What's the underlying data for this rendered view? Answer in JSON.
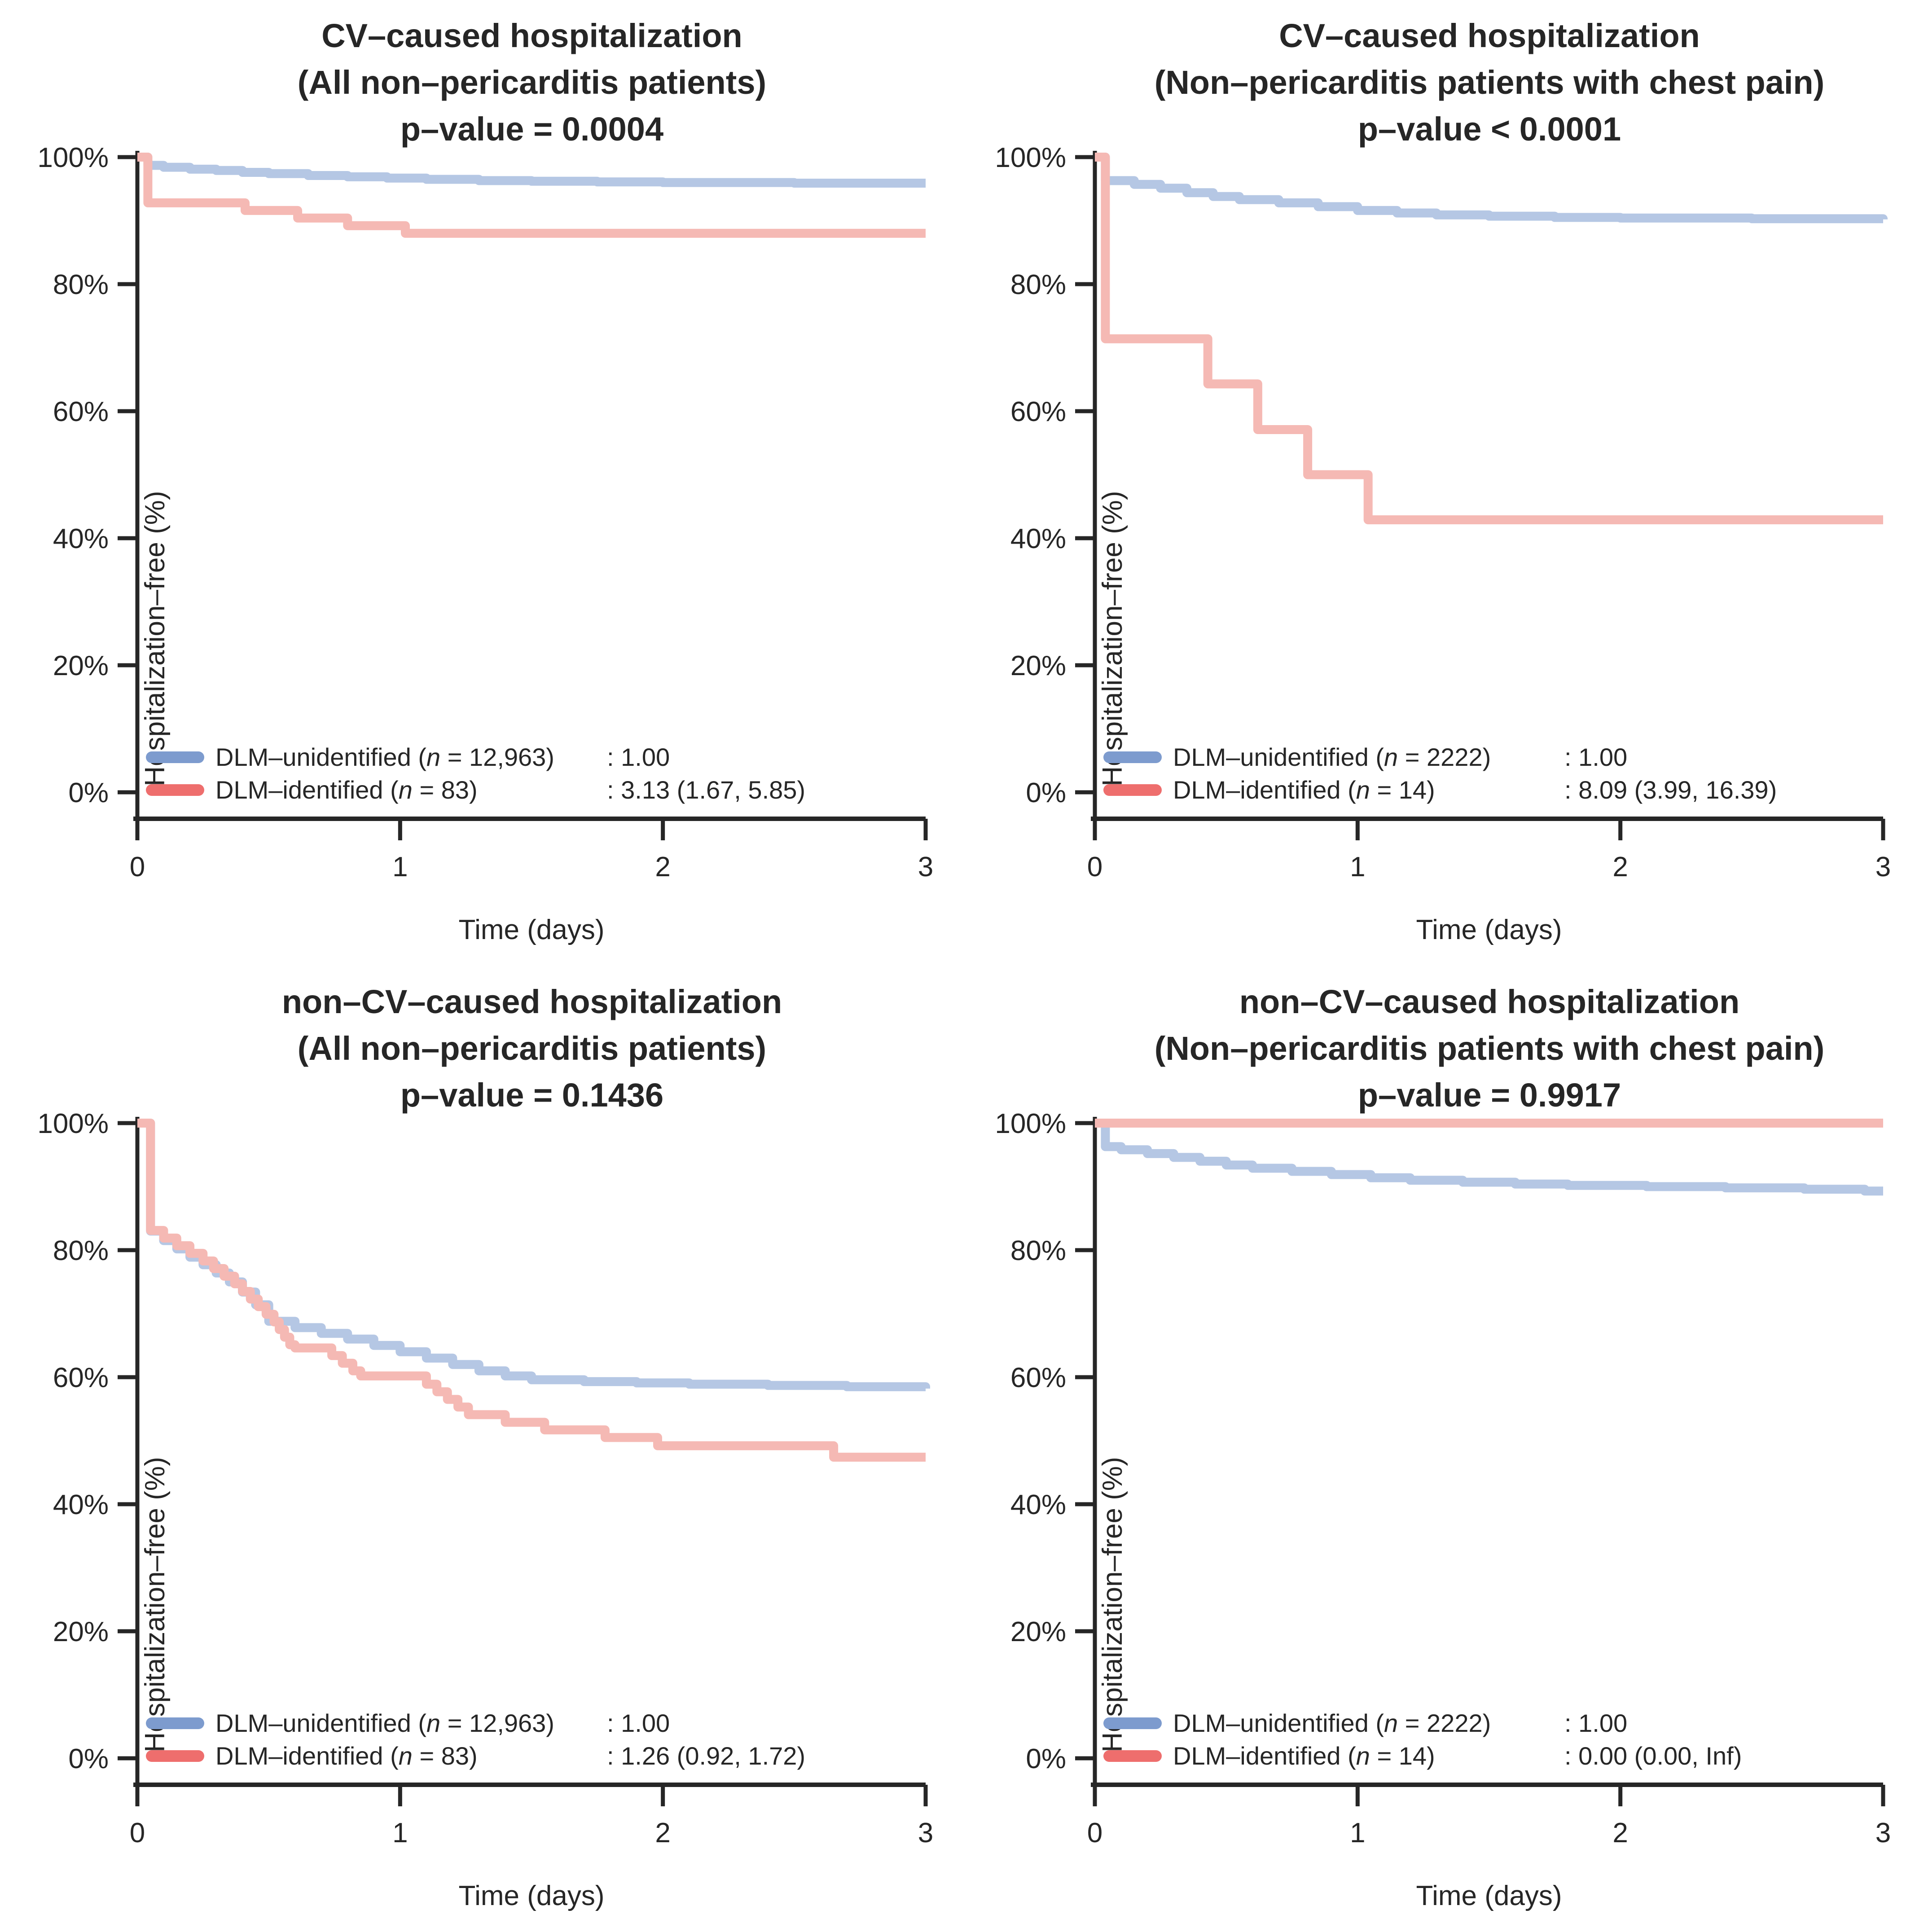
{
  "figure": {
    "background": "#ffffff",
    "colors": {
      "legend_blue": "#7d9bce",
      "legend_red": "#ee6e6d",
      "curve_blue": "#b5c7e4",
      "curve_red": "#f5b9b4",
      "text": "#262626",
      "axis": "#262626"
    }
  },
  "axes": {
    "y_label": "Hospitalization–free (%)",
    "x_label": "Time (days)",
    "y_tick_labels": [
      "0%",
      "20%",
      "40%",
      "60%",
      "80%",
      "100%"
    ],
    "y_tick_values": [
      0,
      20,
      40,
      60,
      80,
      100
    ],
    "x_tick_labels": [
      "0",
      "1",
      "2",
      "3"
    ],
    "x_tick_values": [
      0,
      1,
      2,
      3
    ]
  },
  "chart_data": [
    {
      "type": "line",
      "subtype": "kaplan-meier-step",
      "title_lines": [
        "CV–caused hospitalization",
        "(All non–pericarditis patients)",
        "p–value = 0.0004"
      ],
      "p_value": "p–value = 0.0004",
      "xlabel": "Time (days)",
      "ylabel": "Hospitalization–free (%)",
      "xlim": [
        0,
        3
      ],
      "ylim": [
        0,
        100
      ],
      "series": [
        {
          "name": "DLM-unidentified",
          "label_prefix": "DLM–unidentified (",
          "label_n": "n",
          "label_rest": " = 12,963)",
          "hr_text": ": 1.00",
          "color_key": "blue",
          "points": [
            [
              0,
              100
            ],
            [
              0.04,
              98.7
            ],
            [
              0.1,
              98.4
            ],
            [
              0.2,
              98.1
            ],
            [
              0.3,
              97.9
            ],
            [
              0.4,
              97.6
            ],
            [
              0.5,
              97.4
            ],
            [
              0.65,
              97.1
            ],
            [
              0.8,
              96.9
            ],
            [
              0.95,
              96.7
            ],
            [
              1.1,
              96.5
            ],
            [
              1.3,
              96.3
            ],
            [
              1.5,
              96.2
            ],
            [
              1.75,
              96.1
            ],
            [
              2.0,
              96.0
            ],
            [
              2.5,
              95.9
            ],
            [
              3,
              95.9
            ]
          ]
        },
        {
          "name": "DLM-identified",
          "label_prefix": "DLM–identified (",
          "label_n": "n",
          "label_rest": " = 83)",
          "hr_text": ": 3.13 (1.67, 5.85)",
          "color_key": "red",
          "points": [
            [
              0,
              100
            ],
            [
              0.04,
              92.8
            ],
            [
              0.41,
              91.6
            ],
            [
              0.61,
              90.4
            ],
            [
              0.8,
              89.2
            ],
            [
              1.02,
              88.0
            ],
            [
              3,
              88.0
            ]
          ]
        }
      ]
    },
    {
      "type": "line",
      "subtype": "kaplan-meier-step",
      "title_lines": [
        "CV–caused hospitalization",
        "(Non–pericarditis patients with chest pain)",
        "p–value < 0.0001"
      ],
      "p_value": "p–value < 0.0001",
      "xlabel": "Time (days)",
      "ylabel": "Hospitalization–free (%)",
      "xlim": [
        0,
        3
      ],
      "ylim": [
        0,
        100
      ],
      "series": [
        {
          "name": "DLM-unidentified",
          "label_prefix": "DLM–unidentified (",
          "label_n": "n",
          "label_rest": " = 2222)",
          "hr_text": ": 1.00",
          "color_key": "blue",
          "points": [
            [
              0,
              100
            ],
            [
              0.04,
              96.3
            ],
            [
              0.15,
              95.7
            ],
            [
              0.25,
              95.1
            ],
            [
              0.35,
              94.4
            ],
            [
              0.45,
              93.8
            ],
            [
              0.55,
              93.3
            ],
            [
              0.7,
              92.8
            ],
            [
              0.85,
              92.2
            ],
            [
              1.0,
              91.6
            ],
            [
              1.15,
              91.2
            ],
            [
              1.3,
              90.9
            ],
            [
              1.5,
              90.7
            ],
            [
              1.75,
              90.5
            ],
            [
              2.0,
              90.4
            ],
            [
              2.5,
              90.3
            ],
            [
              3,
              90.2
            ]
          ]
        },
        {
          "name": "DLM-identified",
          "label_prefix": "DLM–identified (",
          "label_n": "n",
          "label_rest": " = 14)",
          "hr_text": ": 8.09 (3.99, 16.39)",
          "color_key": "red",
          "points": [
            [
              0,
              100
            ],
            [
              0.04,
              71.4
            ],
            [
              0.43,
              64.3
            ],
            [
              0.62,
              57.1
            ],
            [
              0.81,
              50.0
            ],
            [
              1.04,
              42.9
            ],
            [
              3,
              42.9
            ]
          ]
        }
      ]
    },
    {
      "type": "line",
      "subtype": "kaplan-meier-step",
      "title_lines": [
        "non–CV–caused hospitalization",
        "(All non–pericarditis patients)",
        "p–value = 0.1436"
      ],
      "p_value": "p–value = 0.1436",
      "xlabel": "Time (days)",
      "ylabel": "Hospitalization–free (%)",
      "xlim": [
        0,
        3
      ],
      "ylim": [
        0,
        100
      ],
      "series": [
        {
          "name": "DLM-unidentified",
          "label_prefix": "DLM–unidentified (",
          "label_n": "n",
          "label_rest": " = 12,963)",
          "hr_text": ": 1.00",
          "color_key": "blue",
          "points": [
            [
              0,
              100
            ],
            [
              0.05,
              83.0
            ],
            [
              0.1,
              81.5
            ],
            [
              0.15,
              80.2
            ],
            [
              0.2,
              78.9
            ],
            [
              0.25,
              77.7
            ],
            [
              0.3,
              76.4
            ],
            [
              0.35,
              75.0
            ],
            [
              0.4,
              73.4
            ],
            [
              0.45,
              71.4
            ],
            [
              0.5,
              68.8
            ],
            [
              0.6,
              67.8
            ],
            [
              0.7,
              66.9
            ],
            [
              0.8,
              66.0
            ],
            [
              0.9,
              65.0
            ],
            [
              1.0,
              64.0
            ],
            [
              1.1,
              63.0
            ],
            [
              1.2,
              62.0
            ],
            [
              1.3,
              61.0
            ],
            [
              1.4,
              60.2
            ],
            [
              1.5,
              59.6
            ],
            [
              1.7,
              59.3
            ],
            [
              1.9,
              59.1
            ],
            [
              2.1,
              58.9
            ],
            [
              2.4,
              58.7
            ],
            [
              2.7,
              58.5
            ],
            [
              3,
              58.2
            ]
          ]
        },
        {
          "name": "DLM-identified",
          "label_prefix": "DLM–identified (",
          "label_n": "n",
          "label_rest": " = 83)",
          "hr_text": ": 1.26 (0.92, 1.72)",
          "color_key": "red",
          "points": [
            [
              0,
              100
            ],
            [
              0.05,
              83.1
            ],
            [
              0.1,
              81.9
            ],
            [
              0.15,
              80.7
            ],
            [
              0.2,
              79.5
            ],
            [
              0.25,
              78.3
            ],
            [
              0.29,
              77.1
            ],
            [
              0.33,
              75.9
            ],
            [
              0.37,
              74.7
            ],
            [
              0.4,
              73.5
            ],
            [
              0.43,
              72.3
            ],
            [
              0.46,
              71.1
            ],
            [
              0.49,
              69.9
            ],
            [
              0.52,
              68.7
            ],
            [
              0.54,
              67.5
            ],
            [
              0.56,
              66.3
            ],
            [
              0.58,
              65.1
            ],
            [
              0.6,
              64.6
            ],
            [
              0.74,
              63.4
            ],
            [
              0.78,
              62.2
            ],
            [
              0.82,
              61.0
            ],
            [
              0.85,
              60.2
            ],
            [
              1.1,
              58.9
            ],
            [
              1.14,
              57.7
            ],
            [
              1.18,
              56.5
            ],
            [
              1.22,
              55.3
            ],
            [
              1.26,
              54.1
            ],
            [
              1.4,
              52.9
            ],
            [
              1.55,
              51.7
            ],
            [
              1.78,
              50.5
            ],
            [
              1.98,
              49.2
            ],
            [
              2.65,
              47.4
            ],
            [
              3,
              47.4
            ]
          ]
        }
      ]
    },
    {
      "type": "line",
      "subtype": "kaplan-meier-step",
      "title_lines": [
        "non–CV–caused hospitalization",
        "(Non–pericarditis patients with chest pain)",
        "p–value = 0.9917"
      ],
      "p_value": "p–value = 0.9917",
      "xlabel": "Time (days)",
      "ylabel": "Hospitalization–free (%)",
      "xlim": [
        0,
        3
      ],
      "ylim": [
        0,
        100
      ],
      "series": [
        {
          "name": "DLM-unidentified",
          "label_prefix": "DLM–unidentified (",
          "label_n": "n",
          "label_rest": " = 2222)",
          "hr_text": ": 1.00",
          "color_key": "blue",
          "points": [
            [
              0,
              100
            ],
            [
              0.04,
              96.3
            ],
            [
              0.1,
              95.8
            ],
            [
              0.2,
              95.2
            ],
            [
              0.3,
              94.6
            ],
            [
              0.4,
              94.0
            ],
            [
              0.5,
              93.4
            ],
            [
              0.6,
              92.9
            ],
            [
              0.75,
              92.4
            ],
            [
              0.9,
              91.9
            ],
            [
              1.05,
              91.4
            ],
            [
              1.2,
              91.0
            ],
            [
              1.4,
              90.7
            ],
            [
              1.6,
              90.4
            ],
            [
              1.8,
              90.2
            ],
            [
              2.1,
              90.0
            ],
            [
              2.4,
              89.8
            ],
            [
              2.7,
              89.6
            ],
            [
              2.93,
              89.3
            ],
            [
              3,
              89.3
            ]
          ]
        },
        {
          "name": "DLM-identified",
          "label_prefix": "DLM–identified (",
          "label_n": "n",
          "label_rest": " = 14)",
          "hr_text": ": 0.00 (0.00, Inf)",
          "color_key": "red",
          "points": [
            [
              0,
              100
            ],
            [
              3,
              100
            ]
          ]
        }
      ]
    }
  ]
}
